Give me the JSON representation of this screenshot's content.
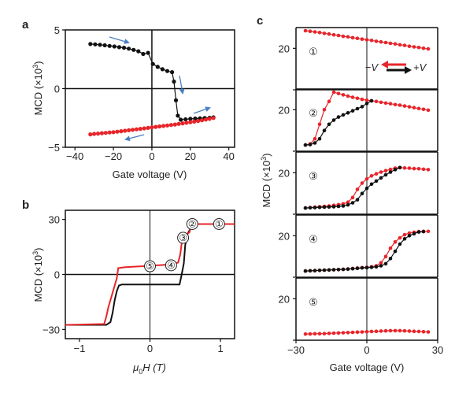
{
  "panel_labels": [
    "a",
    "b",
    "c"
  ],
  "chart_data": [
    {
      "type": "scatter",
      "panel": "a",
      "xlabel": "Gate voltage (V)",
      "ylabel_text": "MCD (×10",
      "ylabel_exp": "3",
      "xlim": [
        -45,
        43
      ],
      "ylim": [
        -5,
        5
      ],
      "xticks": [
        -40,
        -20,
        0,
        20,
        40
      ],
      "xtick_labels": [
        "−40",
        "−20",
        "0",
        "20",
        "40"
      ],
      "yticks": [
        -5,
        0,
        5
      ],
      "ytick_labels": [
        "−5",
        "0",
        "5"
      ],
      "series": [
        {
          "color": "#111111",
          "x": [
            -32,
            -29.5,
            -27,
            -24.5,
            -22,
            -19.5,
            -17,
            -14.5,
            -12,
            -9.5,
            -7,
            -4.5,
            -2,
            0.5,
            3,
            5.5,
            8,
            10.5,
            11.5,
            12.5,
            13.5,
            15,
            17.5,
            20,
            22.5,
            25,
            27.5,
            30,
            32
          ],
          "y": [
            3.8,
            3.77,
            3.73,
            3.69,
            3.64,
            3.59,
            3.53,
            3.48,
            3.4,
            3.3,
            3.18,
            2.95,
            3.05,
            2.1,
            1.85,
            1.65,
            1.5,
            1.4,
            0.6,
            -1.0,
            -2.3,
            -2.65,
            -2.62,
            -2.58,
            -2.55,
            -2.53,
            -2.51,
            -2.49,
            -2.45
          ]
        },
        {
          "color": "#e8252a",
          "x": [
            -32,
            -30,
            -28,
            -26,
            -24,
            -22,
            -20,
            -18,
            -16,
            -14,
            -12,
            -10,
            -8,
            -6,
            -4,
            -2,
            0,
            2,
            4,
            6,
            8,
            10,
            12,
            14,
            16,
            18,
            20,
            22,
            24,
            26,
            28,
            30,
            32
          ],
          "y": [
            -3.9,
            -3.86,
            -3.83,
            -3.8,
            -3.77,
            -3.74,
            -3.71,
            -3.67,
            -3.63,
            -3.59,
            -3.55,
            -3.51,
            -3.47,
            -3.43,
            -3.39,
            -3.35,
            -3.3,
            -3.26,
            -3.22,
            -3.18,
            -3.14,
            -3.1,
            -3.06,
            -3.01,
            -2.96,
            -2.91,
            -2.86,
            -2.81,
            -2.76,
            -2.7,
            -2.64,
            -2.58,
            -2.5
          ]
        }
      ]
    },
    {
      "type": "line",
      "panel": "b",
      "xlabel_mu": "μ",
      "xlabel_sub": "0",
      "xlabel_rest": "H (T)",
      "ylabel_text": "MCD (×10",
      "ylabel_exp": "3",
      "xlim": [
        -1.2,
        1.2
      ],
      "ylim": [
        -35,
        35
      ],
      "xticks": [
        -1,
        0,
        1
      ],
      "xtick_labels": [
        "−1",
        "0",
        "1"
      ],
      "yticks": [
        -30,
        0,
        30
      ],
      "ytick_labels": [
        "−30",
        "0",
        "30"
      ],
      "series": [
        {
          "color": "#111111",
          "x": [
            -1.2,
            -0.62,
            -0.56,
            -0.53,
            -0.5,
            -0.47,
            -0.44,
            -0.4,
            0.42,
            0.45,
            0.48,
            0.5,
            0.53,
            0.56,
            0.6,
            0.62,
            1.2
          ],
          "y": [
            -27.5,
            -27.5,
            -26,
            -21,
            -14,
            -9,
            -6,
            -5.5,
            -5.5,
            0,
            6,
            16,
            22,
            24,
            27,
            27.5,
            27.5
          ]
        },
        {
          "color": "#e8252a",
          "x": [
            -1.2,
            -0.65,
            -0.62,
            -0.59,
            -0.56,
            -0.53,
            -0.5,
            -0.47,
            -0.45,
            -0.35,
            -0.1,
            0.3,
            0.4,
            0.43,
            0.45,
            0.47,
            0.5,
            0.53,
            0.56,
            0.58,
            0.6,
            1.2
          ],
          "y": [
            -27.5,
            -27,
            -23,
            -18,
            -14,
            -10,
            -6,
            -2,
            3.5,
            4,
            4.5,
            5.5,
            6.5,
            11,
            17,
            20,
            21,
            22,
            23,
            26,
            27.5,
            27.5
          ]
        }
      ],
      "markers": [
        {
          "label": "⑤",
          "x": 0.0,
          "y": 4.5
        },
        {
          "label": "④",
          "x": 0.3,
          "y": 5.0
        },
        {
          "label": "③",
          "x": 0.47,
          "y": 20.0
        },
        {
          "label": "②",
          "x": 0.6,
          "y": 27.5
        },
        {
          "label": "①",
          "x": 0.98,
          "y": 27.5
        }
      ]
    },
    {
      "type": "scatter",
      "panel": "c",
      "xlabel": "Gate voltage (V)",
      "ylabel_text": "MCD (×10",
      "ylabel_exp": "3",
      "xlim": [
        -30,
        30
      ],
      "xticks": [
        -30,
        0,
        30
      ],
      "xtick_labels": [
        "−30",
        "0",
        "30"
      ],
      "legend": {
        "neg_label": "−V",
        "pos_label": "+V",
        "position": "top-right of subpanel 1"
      },
      "subpanels": [
        {
          "label": "①",
          "ylim": [
            0,
            30
          ],
          "yticks": [
            0,
            20
          ],
          "ytick_labels": [
            "",
            "20"
          ],
          "series": [
            {
              "color": "#e8252a",
              "x": [
                -26,
                -24,
                -22,
                -20,
                -18,
                -16,
                -14,
                -12,
                -10,
                -8,
                -6,
                -4,
                -2,
                0,
                2,
                4,
                6,
                8,
                10,
                12,
                14,
                16,
                18,
                20,
                22,
                24,
                26
              ],
              "y": [
                28.5,
                28.2,
                27.9,
                27.6,
                27.2,
                26.9,
                26.5,
                26.2,
                25.8,
                25.5,
                25.1,
                24.8,
                24.4,
                24.1,
                23.8,
                23.4,
                23.1,
                22.8,
                22.4,
                22.1,
                21.7,
                21.4,
                21.0,
                20.7,
                20.4,
                20.0,
                19.7
              ]
            }
          ]
        },
        {
          "label": "②",
          "ylim": [
            0,
            30
          ],
          "yticks": [
            0,
            20
          ],
          "ytick_labels": [
            "",
            "20"
          ],
          "series": [
            {
              "color": "#e8252a",
              "x": [
                -26,
                -24,
                -22,
                -20,
                -18,
                -16,
                -14,
                -12,
                -10,
                -8,
                -6,
                -4,
                -2,
                0,
                2,
                4,
                6,
                8,
                10,
                12,
                14,
                16,
                18,
                20,
                22,
                24,
                26
              ],
              "y": [
                3,
                3.5,
                6,
                13,
                20,
                24,
                28.5,
                27.8,
                27.2,
                26.6,
                26.0,
                25.5,
                25.0,
                24.6,
                24.3,
                24.0,
                23.6,
                23.2,
                22.9,
                22.5,
                22.2,
                21.8,
                21.4,
                21.0,
                20.6,
                20.2,
                19.8
              ]
            },
            {
              "color": "#111111",
              "x": [
                -26,
                -24,
                -22,
                -20,
                -18,
                -16,
                -14,
                -12,
                -10,
                -8,
                -6,
                -4,
                -2,
                0,
                2
              ],
              "y": [
                3,
                3.2,
                4,
                6,
                10,
                13,
                15,
                16.5,
                17.5,
                18.5,
                19.5,
                20.5,
                21.5,
                23,
                24.3
              ]
            }
          ]
        },
        {
          "label": "③",
          "ylim": [
            0,
            30
          ],
          "yticks": [
            0,
            20
          ],
          "ytick_labels": [
            "",
            "20"
          ],
          "series": [
            {
              "color": "#e8252a",
              "x": [
                -26,
                -24,
                -22,
                -20,
                -18,
                -16,
                -14,
                -12,
                -10,
                -8,
                -6,
                -4,
                -2,
                0,
                2,
                4,
                6,
                8,
                10,
                12,
                14,
                16,
                18,
                20,
                22,
                24,
                26
              ],
              "y": [
                3,
                3.2,
                3.4,
                3.6,
                3.8,
                4.0,
                4.3,
                4.6,
                5.0,
                5.8,
                8,
                12,
                15,
                17,
                18.5,
                19.5,
                20.3,
                21,
                21.6,
                22.2,
                22.5,
                22.3,
                22.2,
                22.0,
                21.9,
                21.7,
                21.5
              ]
            },
            {
              "color": "#111111",
              "x": [
                -26,
                -24,
                -22,
                -20,
                -18,
                -16,
                -14,
                -12,
                -10,
                -8,
                -6,
                -4,
                -2,
                0,
                2,
                4,
                6,
                8,
                10,
                12,
                14
              ],
              "y": [
                3,
                3.1,
                3.2,
                3.3,
                3.4,
                3.5,
                3.6,
                3.8,
                4.0,
                4.5,
                5.5,
                7,
                10,
                12.5,
                14.5,
                16,
                17.5,
                19,
                20.3,
                21.5,
                22.5
              ]
            }
          ]
        },
        {
          "label": "④",
          "ylim": [
            0,
            30
          ],
          "yticks": [
            0,
            20
          ],
          "ytick_labels": [
            "",
            "20"
          ],
          "series": [
            {
              "color": "#e8252a",
              "x": [
                -26,
                -24,
                -22,
                -20,
                -18,
                -16,
                -14,
                -12,
                -10,
                -8,
                -6,
                -4,
                -2,
                0,
                2,
                4,
                6,
                8,
                10,
                12,
                14,
                16,
                18,
                20,
                22,
                24,
                26
              ],
              "y": [
                3,
                3.1,
                3.2,
                3.3,
                3.4,
                3.5,
                3.6,
                3.7,
                3.8,
                4.0,
                4.2,
                4.4,
                4.6,
                4.8,
                5.0,
                5.5,
                7,
                10,
                14,
                17,
                19,
                20.5,
                21.3,
                21.7,
                22,
                22.1,
                22.1
              ]
            },
            {
              "color": "#111111",
              "x": [
                -26,
                -24,
                -22,
                -20,
                -18,
                -16,
                -14,
                -12,
                -10,
                -8,
                -6,
                -4,
                -2,
                0,
                2,
                4,
                6,
                8,
                10,
                12,
                14,
                16,
                18,
                20,
                22,
                24
              ],
              "y": [
                3,
                3.1,
                3.2,
                3.3,
                3.4,
                3.5,
                3.6,
                3.7,
                3.8,
                3.9,
                4.1,
                4.3,
                4.5,
                4.6,
                4.8,
                5.0,
                5.5,
                6.5,
                9,
                12.5,
                16,
                18.5,
                20,
                21,
                21.8,
                22
              ]
            }
          ]
        },
        {
          "label": "⑤",
          "ylim": [
            0,
            30
          ],
          "yticks": [
            0,
            20
          ],
          "ytick_labels": [
            "",
            "20"
          ],
          "series": [
            {
              "color": "#e8252a",
              "x": [
                -26,
                -24,
                -22,
                -20,
                -18,
                -16,
                -14,
                -12,
                -10,
                -8,
                -6,
                -4,
                -2,
                0,
                2,
                4,
                6,
                8,
                10,
                12,
                14,
                16,
                18,
                20,
                22,
                24,
                26
              ],
              "y": [
                3,
                3.05,
                3.1,
                3.15,
                3.2,
                3.3,
                3.4,
                3.5,
                3.6,
                3.7,
                3.8,
                3.9,
                4.0,
                4.1,
                4.2,
                4.3,
                4.4,
                4.5,
                4.6,
                4.6,
                4.6,
                4.5,
                4.4,
                4.3,
                4.2,
                4.1,
                4.0
              ]
            }
          ]
        }
      ]
    }
  ]
}
